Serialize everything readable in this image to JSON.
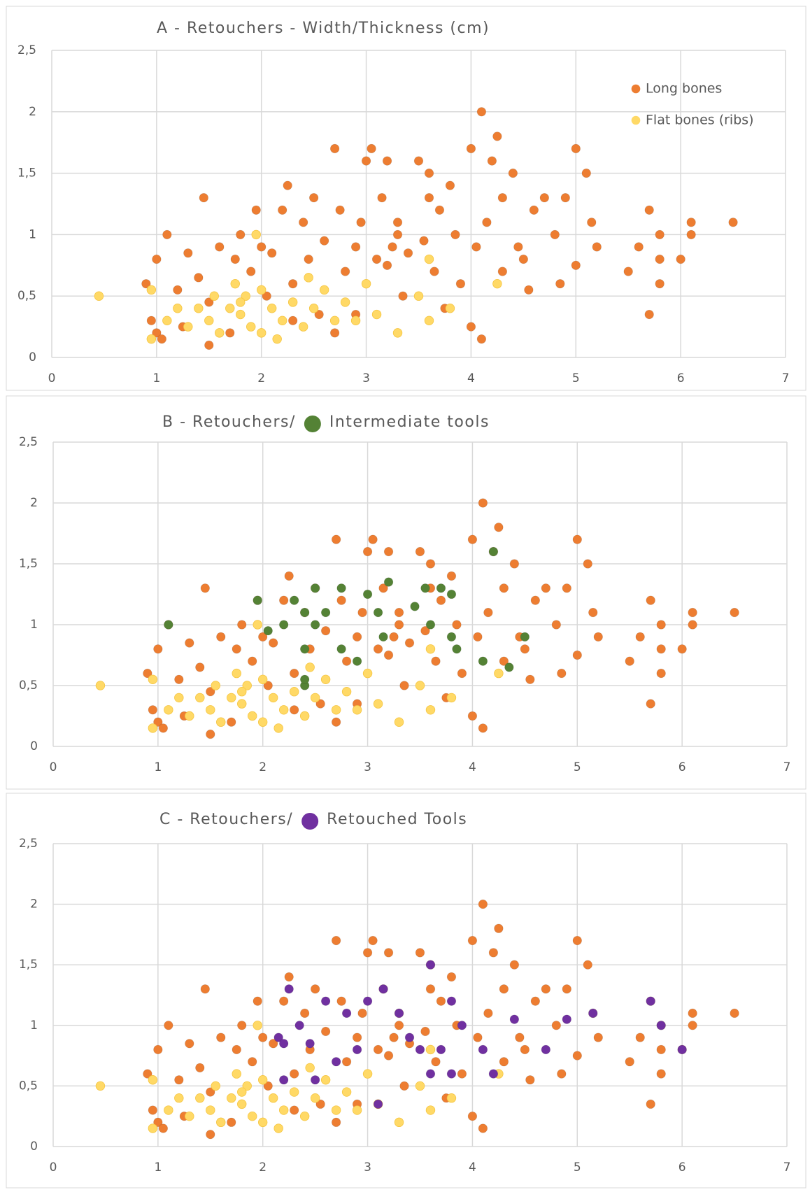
{
  "chart_data": [
    {
      "type": "scatter",
      "title": "A - Retouchers - Width/Thickness (cm)",
      "legend": "upper right",
      "grid": true,
      "xlim": [
        0,
        7
      ],
      "xticks": [
        0,
        1,
        2,
        3,
        4,
        5,
        6,
        7
      ],
      "ylim": [
        0,
        2.5
      ],
      "yticks": [
        0,
        {
          "value": 0.5,
          "label": "0,5"
        },
        1,
        {
          "value": 1.5,
          "label": "1,5"
        },
        2,
        {
          "value": 2.5,
          "label": "2,5"
        }
      ],
      "series": [
        {
          "name": "Long bones",
          "color": "#ed7d31",
          "x": [
            0.9,
            0.95,
            1,
            1,
            1.05,
            1.1,
            1.2,
            1.25,
            1.3,
            1.4,
            1.45,
            1.5,
            1.5,
            1.6,
            1.7,
            1.75,
            1.8,
            1.9,
            1.95,
            2,
            2.05,
            2.1,
            2.2,
            2.25,
            2.3,
            2.4,
            2.45,
            2.5,
            2.55,
            2.6,
            2.7,
            2.75,
            2.8,
            2.9,
            2.95,
            3,
            3.05,
            3.1,
            3.15,
            3.2,
            3.25,
            3.3,
            3.35,
            3.4,
            3.5,
            3.55,
            3.6,
            3.65,
            3.7,
            3.75,
            3.8,
            3.85,
            3.9,
            4,
            4,
            4.05,
            4.1,
            4.1,
            4.15,
            4.2,
            4.25,
            4.3,
            4.4,
            4.45,
            4.5,
            4.55,
            4.6,
            4.7,
            4.8,
            4.85,
            4.9,
            5,
            5,
            5.1,
            5.15,
            5.2,
            5.5,
            5.6,
            5.7,
            5.7,
            5.8,
            5.8,
            5.8,
            6,
            6.1,
            6.1,
            6.5,
            3.3,
            3.2,
            2.3,
            2.7,
            1.6,
            2.9,
            3.6,
            4.3
          ],
          "y": [
            0.6,
            0.3,
            0.8,
            0.2,
            0.15,
            1,
            0.55,
            0.25,
            0.85,
            0.65,
            1.3,
            0.1,
            0.45,
            0.9,
            0.2,
            0.8,
            1,
            0.7,
            1.2,
            0.9,
            0.5,
            0.85,
            1.2,
            1.4,
            0.6,
            1.1,
            0.8,
            1.3,
            0.35,
            0.95,
            1.7,
            1.2,
            0.7,
            0.9,
            1.1,
            1.6,
            1.7,
            0.8,
            1.3,
            1.6,
            0.9,
            1,
            0.5,
            0.85,
            1.6,
            0.95,
            1.5,
            0.7,
            1.2,
            0.4,
            1.4,
            1,
            0.6,
            1.7,
            0.25,
            0.9,
            2,
            0.15,
            1.1,
            1.6,
            1.8,
            0.7,
            1.5,
            0.9,
            0.8,
            0.55,
            1.2,
            1.3,
            1,
            0.6,
            1.3,
            1.7,
            0.75,
            1.5,
            1.1,
            0.9,
            0.7,
            0.9,
            1.2,
            0.35,
            0.8,
            0.6,
            1,
            0.8,
            1.1,
            1,
            1.1,
            1.1,
            0.75,
            0.3,
            0.2,
            0.2,
            0.35,
            1.3,
            1.3
          ]
        },
        {
          "name": "Flat bones (ribs)",
          "color": "#ffd966",
          "x": [
            0.45,
            0.95,
            0.95,
            1.1,
            1.2,
            1.3,
            1.4,
            1.5,
            1.55,
            1.6,
            1.7,
            1.75,
            1.8,
            1.85,
            1.9,
            1.95,
            2,
            2,
            2.1,
            2.15,
            2.2,
            2.3,
            2.4,
            2.5,
            2.6,
            2.7,
            2.8,
            2.9,
            3,
            3.1,
            3.3,
            3.5,
            3.6,
            3.6,
            3.8,
            4.25,
            1.8,
            2.45
          ],
          "y": [
            0.5,
            0.55,
            0.15,
            0.3,
            0.4,
            0.25,
            0.4,
            0.3,
            0.5,
            0.2,
            0.4,
            0.6,
            0.35,
            0.5,
            0.25,
            1,
            0.55,
            0.2,
            0.4,
            0.15,
            0.3,
            0.45,
            0.25,
            0.4,
            0.55,
            0.3,
            0.45,
            0.3,
            0.6,
            0.35,
            0.2,
            0.5,
            0.3,
            0.8,
            0.4,
            0.6,
            0.45,
            0.65
          ]
        }
      ]
    },
    {
      "type": "scatter",
      "title": "B - Retouchers/",
      "legend": "title",
      "grid": true,
      "xlim": [
        0,
        7
      ],
      "xticks": [
        0,
        1,
        2,
        3,
        4,
        5,
        6,
        7
      ],
      "ylim": [
        0,
        2.5
      ],
      "yticks": [
        0,
        {
          "value": 0.5,
          "label": "0,5"
        },
        1,
        {
          "value": 1.5,
          "label": "1,5"
        },
        2,
        {
          "value": 2.5,
          "label": "2,5"
        }
      ],
      "series": [
        {
          "color": "#ed7d31",
          "x": [
            0.9,
            0.95,
            1,
            1,
            1.05,
            1.1,
            1.2,
            1.25,
            1.3,
            1.4,
            1.45,
            1.5,
            1.5,
            1.6,
            1.7,
            1.75,
            1.8,
            1.9,
            1.95,
            2,
            2.05,
            2.1,
            2.2,
            2.25,
            2.3,
            2.4,
            2.45,
            2.5,
            2.55,
            2.6,
            2.7,
            2.75,
            2.8,
            2.9,
            2.95,
            3,
            3.05,
            3.1,
            3.15,
            3.2,
            3.25,
            3.3,
            3.35,
            3.4,
            3.5,
            3.55,
            3.6,
            3.65,
            3.7,
            3.75,
            3.8,
            3.85,
            3.9,
            4,
            4,
            4.05,
            4.1,
            4.1,
            4.15,
            4.2,
            4.25,
            4.3,
            4.4,
            4.45,
            4.5,
            4.55,
            4.6,
            4.7,
            4.8,
            4.85,
            4.9,
            5,
            5,
            5.1,
            5.15,
            5.2,
            5.5,
            5.6,
            5.7,
            5.7,
            5.8,
            5.8,
            5.8,
            6,
            6.1,
            6.1,
            6.5,
            3.3,
            3.2,
            2.3,
            2.7,
            1.6,
            2.9,
            3.6,
            4.3
          ],
          "y": [
            0.6,
            0.3,
            0.8,
            0.2,
            0.15,
            1,
            0.55,
            0.25,
            0.85,
            0.65,
            1.3,
            0.1,
            0.45,
            0.9,
            0.2,
            0.8,
            1,
            0.7,
            1.2,
            0.9,
            0.5,
            0.85,
            1.2,
            1.4,
            0.6,
            1.1,
            0.8,
            1.3,
            0.35,
            0.95,
            1.7,
            1.2,
            0.7,
            0.9,
            1.1,
            1.6,
            1.7,
            0.8,
            1.3,
            1.6,
            0.9,
            1,
            0.5,
            0.85,
            1.6,
            0.95,
            1.5,
            0.7,
            1.2,
            0.4,
            1.4,
            1,
            0.6,
            1.7,
            0.25,
            0.9,
            2,
            0.15,
            1.1,
            1.6,
            1.8,
            0.7,
            1.5,
            0.9,
            0.8,
            0.55,
            1.2,
            1.3,
            1,
            0.6,
            1.3,
            1.7,
            0.75,
            1.5,
            1.1,
            0.9,
            0.7,
            0.9,
            1.2,
            0.35,
            0.8,
            0.6,
            1,
            0.8,
            1.1,
            1,
            1.1,
            1.1,
            0.75,
            0.3,
            0.2,
            0.2,
            0.35,
            1.3,
            1.3
          ]
        },
        {
          "color": "#ffd966",
          "x": [
            0.45,
            0.95,
            0.95,
            1.1,
            1.2,
            1.3,
            1.4,
            1.5,
            1.55,
            1.6,
            1.7,
            1.75,
            1.8,
            1.85,
            1.9,
            1.95,
            2,
            2,
            2.1,
            2.15,
            2.2,
            2.3,
            2.4,
            2.5,
            2.6,
            2.7,
            2.8,
            2.9,
            3,
            3.1,
            3.3,
            3.5,
            3.6,
            3.6,
            3.8,
            4.25,
            1.8,
            2.45
          ],
          "y": [
            0.5,
            0.55,
            0.15,
            0.3,
            0.4,
            0.25,
            0.4,
            0.3,
            0.5,
            0.2,
            0.4,
            0.6,
            0.35,
            0.5,
            0.25,
            1,
            0.55,
            0.2,
            0.4,
            0.15,
            0.3,
            0.45,
            0.25,
            0.4,
            0.55,
            0.3,
            0.45,
            0.3,
            0.6,
            0.35,
            0.2,
            0.5,
            0.3,
            0.8,
            0.4,
            0.6,
            0.45,
            0.65
          ]
        },
        {
          "name": "Intermediate tools",
          "color": "#548235",
          "x": [
            1.1,
            1.95,
            2.05,
            2.2,
            2.3,
            2.4,
            2.4,
            2.4,
            2.5,
            2.5,
            2.6,
            2.75,
            2.75,
            2.9,
            3,
            3.1,
            3.2,
            3.15,
            3.55,
            3.6,
            3.7,
            3.8,
            3.8,
            3.85,
            4.1,
            4.2,
            4.35,
            4.5,
            3.45,
            2.4
          ],
          "y": [
            1,
            1.2,
            0.95,
            1,
            1.2,
            1.1,
            0.8,
            0.5,
            1.3,
            1,
            1.1,
            1.3,
            0.8,
            0.7,
            1.25,
            1.1,
            1.35,
            0.9,
            1.3,
            1,
            1.3,
            1.25,
            0.9,
            0.8,
            0.7,
            1.6,
            0.65,
            0.9,
            1.15,
            0.55
          ]
        }
      ]
    },
    {
      "type": "scatter",
      "title": "C - Retouchers/",
      "legend": "title",
      "grid": true,
      "xlim": [
        0,
        7
      ],
      "xticks": [
        0,
        1,
        2,
        3,
        4,
        5,
        6,
        7
      ],
      "ylim": [
        0,
        2.5
      ],
      "yticks": [
        0,
        {
          "value": 0.5,
          "label": "0,5"
        },
        1,
        {
          "value": 1.5,
          "label": "1,5"
        },
        2,
        {
          "value": 2.5,
          "label": "2,5"
        }
      ],
      "series": [
        {
          "color": "#ed7d31",
          "x": [
            0.9,
            0.95,
            1,
            1,
            1.05,
            1.1,
            1.2,
            1.25,
            1.3,
            1.4,
            1.45,
            1.5,
            1.5,
            1.6,
            1.7,
            1.75,
            1.8,
            1.9,
            1.95,
            2,
            2.05,
            2.1,
            2.2,
            2.25,
            2.3,
            2.4,
            2.45,
            2.5,
            2.55,
            2.6,
            2.7,
            2.75,
            2.8,
            2.9,
            2.95,
            3,
            3.05,
            3.1,
            3.15,
            3.2,
            3.25,
            3.3,
            3.35,
            3.4,
            3.5,
            3.55,
            3.6,
            3.65,
            3.7,
            3.75,
            3.8,
            3.85,
            3.9,
            4,
            4,
            4.05,
            4.1,
            4.1,
            4.15,
            4.2,
            4.25,
            4.3,
            4.4,
            4.45,
            4.5,
            4.55,
            4.6,
            4.7,
            4.8,
            4.85,
            4.9,
            5,
            5,
            5.1,
            5.15,
            5.2,
            5.5,
            5.6,
            5.7,
            5.7,
            5.8,
            5.8,
            5.8,
            6,
            6.1,
            6.1,
            6.5,
            3.3,
            3.2,
            2.3,
            2.7,
            1.6,
            2.9,
            3.6,
            4.3
          ],
          "y": [
            0.6,
            0.3,
            0.8,
            0.2,
            0.15,
            1,
            0.55,
            0.25,
            0.85,
            0.65,
            1.3,
            0.1,
            0.45,
            0.9,
            0.2,
            0.8,
            1,
            0.7,
            1.2,
            0.9,
            0.5,
            0.85,
            1.2,
            1.4,
            0.6,
            1.1,
            0.8,
            1.3,
            0.35,
            0.95,
            1.7,
            1.2,
            0.7,
            0.9,
            1.1,
            1.6,
            1.7,
            0.8,
            1.3,
            1.6,
            0.9,
            1,
            0.5,
            0.85,
            1.6,
            0.95,
            1.5,
            0.7,
            1.2,
            0.4,
            1.4,
            1,
            0.6,
            1.7,
            0.25,
            0.9,
            2,
            0.15,
            1.1,
            1.6,
            1.8,
            0.7,
            1.5,
            0.9,
            0.8,
            0.55,
            1.2,
            1.3,
            1,
            0.6,
            1.3,
            1.7,
            0.75,
            1.5,
            1.1,
            0.9,
            0.7,
            0.9,
            1.2,
            0.35,
            0.8,
            0.6,
            1,
            0.8,
            1.1,
            1,
            1.1,
            1.1,
            0.75,
            0.3,
            0.2,
            0.2,
            0.35,
            1.3,
            1.3
          ]
        },
        {
          "color": "#ffd966",
          "x": [
            0.45,
            0.95,
            0.95,
            1.1,
            1.2,
            1.3,
            1.4,
            1.5,
            1.55,
            1.6,
            1.7,
            1.75,
            1.8,
            1.85,
            1.9,
            1.95,
            2,
            2,
            2.1,
            2.15,
            2.2,
            2.3,
            2.4,
            2.5,
            2.6,
            2.7,
            2.8,
            2.9,
            3,
            3.1,
            3.3,
            3.5,
            3.6,
            3.6,
            3.8,
            4.25,
            1.8,
            2.45
          ],
          "y": [
            0.5,
            0.55,
            0.15,
            0.3,
            0.4,
            0.25,
            0.4,
            0.3,
            0.5,
            0.2,
            0.4,
            0.6,
            0.35,
            0.5,
            0.25,
            1,
            0.55,
            0.2,
            0.4,
            0.15,
            0.3,
            0.45,
            0.25,
            0.4,
            0.55,
            0.3,
            0.45,
            0.3,
            0.6,
            0.35,
            0.2,
            0.5,
            0.3,
            0.8,
            0.4,
            0.6,
            0.45,
            0.65
          ]
        },
        {
          "name": "Retouched Tools",
          "color": "#7030a0",
          "x": [
            2.15,
            2.2,
            2.25,
            2.35,
            2.45,
            2.5,
            2.6,
            2.7,
            2.8,
            2.9,
            3,
            3.1,
            3.15,
            3.3,
            3.4,
            3.5,
            3.6,
            3.6,
            3.7,
            3.8,
            3.9,
            4.1,
            4.2,
            4.4,
            4.7,
            4.9,
            5.15,
            5.7,
            5.8,
            6,
            2.2,
            3.8
          ],
          "y": [
            0.9,
            0.85,
            1.3,
            1,
            0.85,
            0.55,
            1.2,
            0.7,
            1.1,
            0.8,
            1.2,
            0.35,
            1.3,
            1.1,
            0.9,
            0.8,
            1.5,
            0.6,
            0.8,
            1.2,
            1,
            0.8,
            0.6,
            1.05,
            0.8,
            1.05,
            1.1,
            1.2,
            1,
            0.8,
            0.55,
            0.6
          ]
        }
      ]
    }
  ]
}
